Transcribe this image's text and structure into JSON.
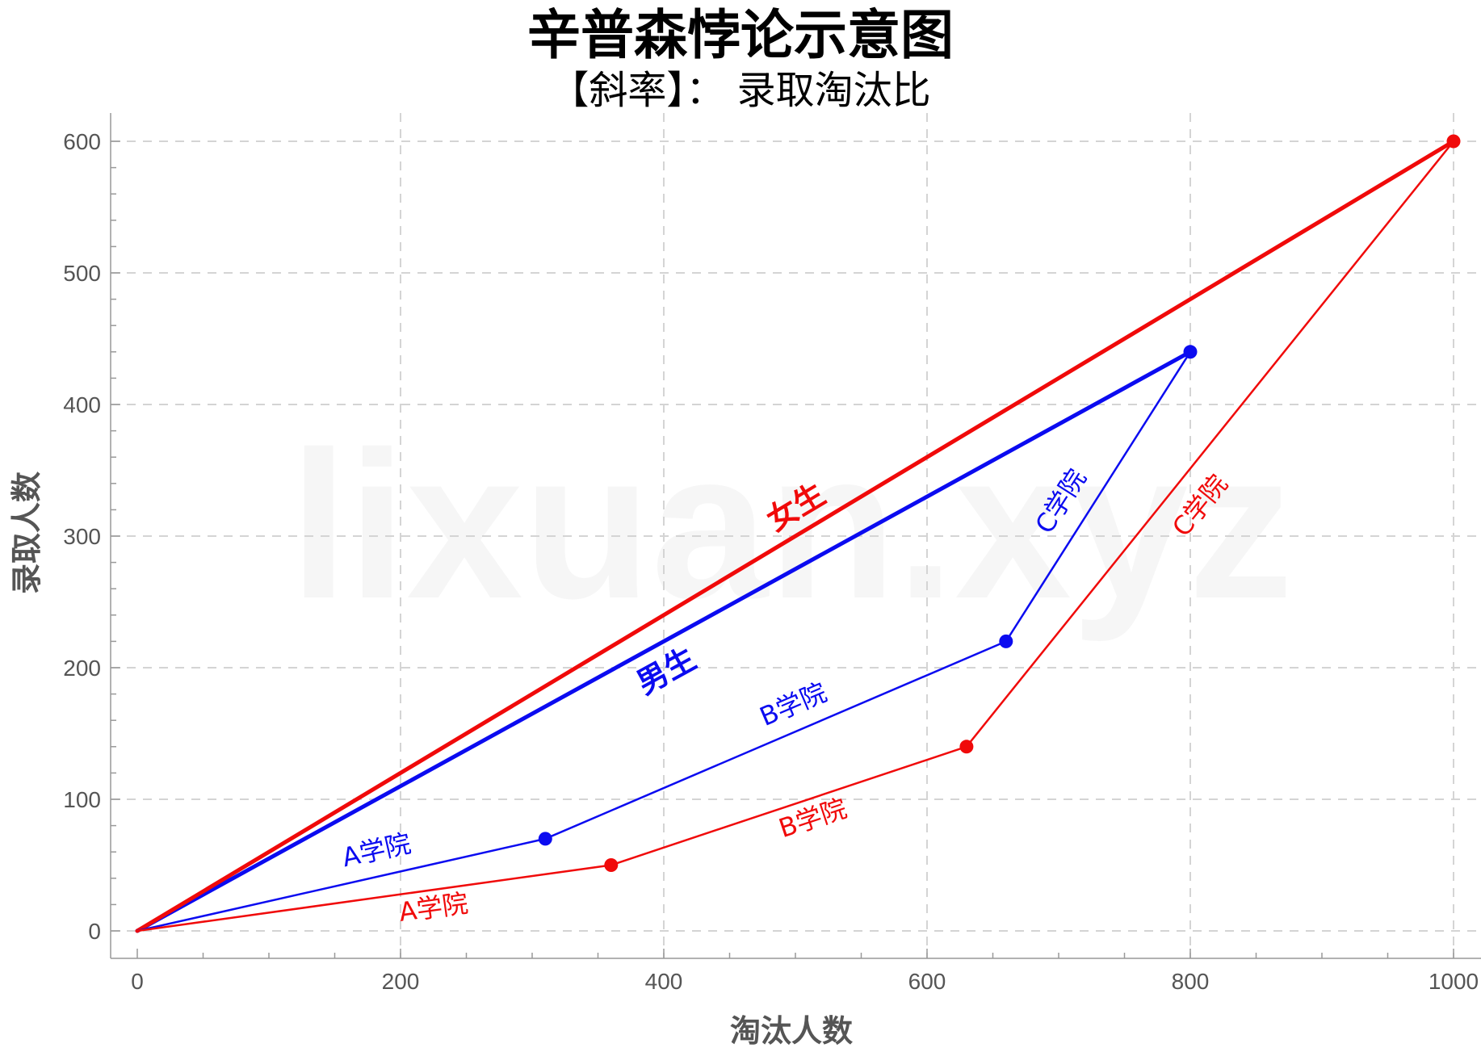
{
  "title": "辛普森悖论示意图",
  "subtitle": "【斜率】：  录取淘汰比",
  "watermark": "lixuan.xyz",
  "chart_data": {
    "type": "line",
    "xlabel": "淘汰人数",
    "ylabel": "录取人数",
    "xlim": [
      0,
      1000
    ],
    "ylim": [
      0,
      600
    ],
    "xticks": [
      0,
      200,
      400,
      600,
      800,
      1000
    ],
    "yticks": [
      0,
      100,
      200,
      300,
      400,
      500,
      600
    ],
    "grid": true,
    "colors": {
      "male": "#0b0bf0",
      "female": "#f00a0a"
    },
    "series": [
      {
        "name": "男生",
        "color": "#0b0bf0",
        "kind": "total",
        "x": [
          0,
          800
        ],
        "y": [
          0,
          440
        ]
      },
      {
        "name": "女生",
        "color": "#f00a0a",
        "kind": "total",
        "x": [
          0,
          1000
        ],
        "y": [
          0,
          600
        ]
      },
      {
        "name": "",
        "color": "#0b0bf0",
        "kind": "colleges",
        "x": [
          0,
          310,
          660,
          800
        ],
        "y": [
          0,
          70,
          220,
          440
        ],
        "segment_labels": [
          "A学院",
          "B学院",
          "C学院"
        ]
      },
      {
        "name": "",
        "color": "#f00a0a",
        "kind": "colleges",
        "x": [
          0,
          360,
          630,
          1000
        ],
        "y": [
          0,
          50,
          140,
          600
        ],
        "segment_labels": [
          "A学院",
          "B学院",
          "C学院"
        ]
      }
    ]
  }
}
